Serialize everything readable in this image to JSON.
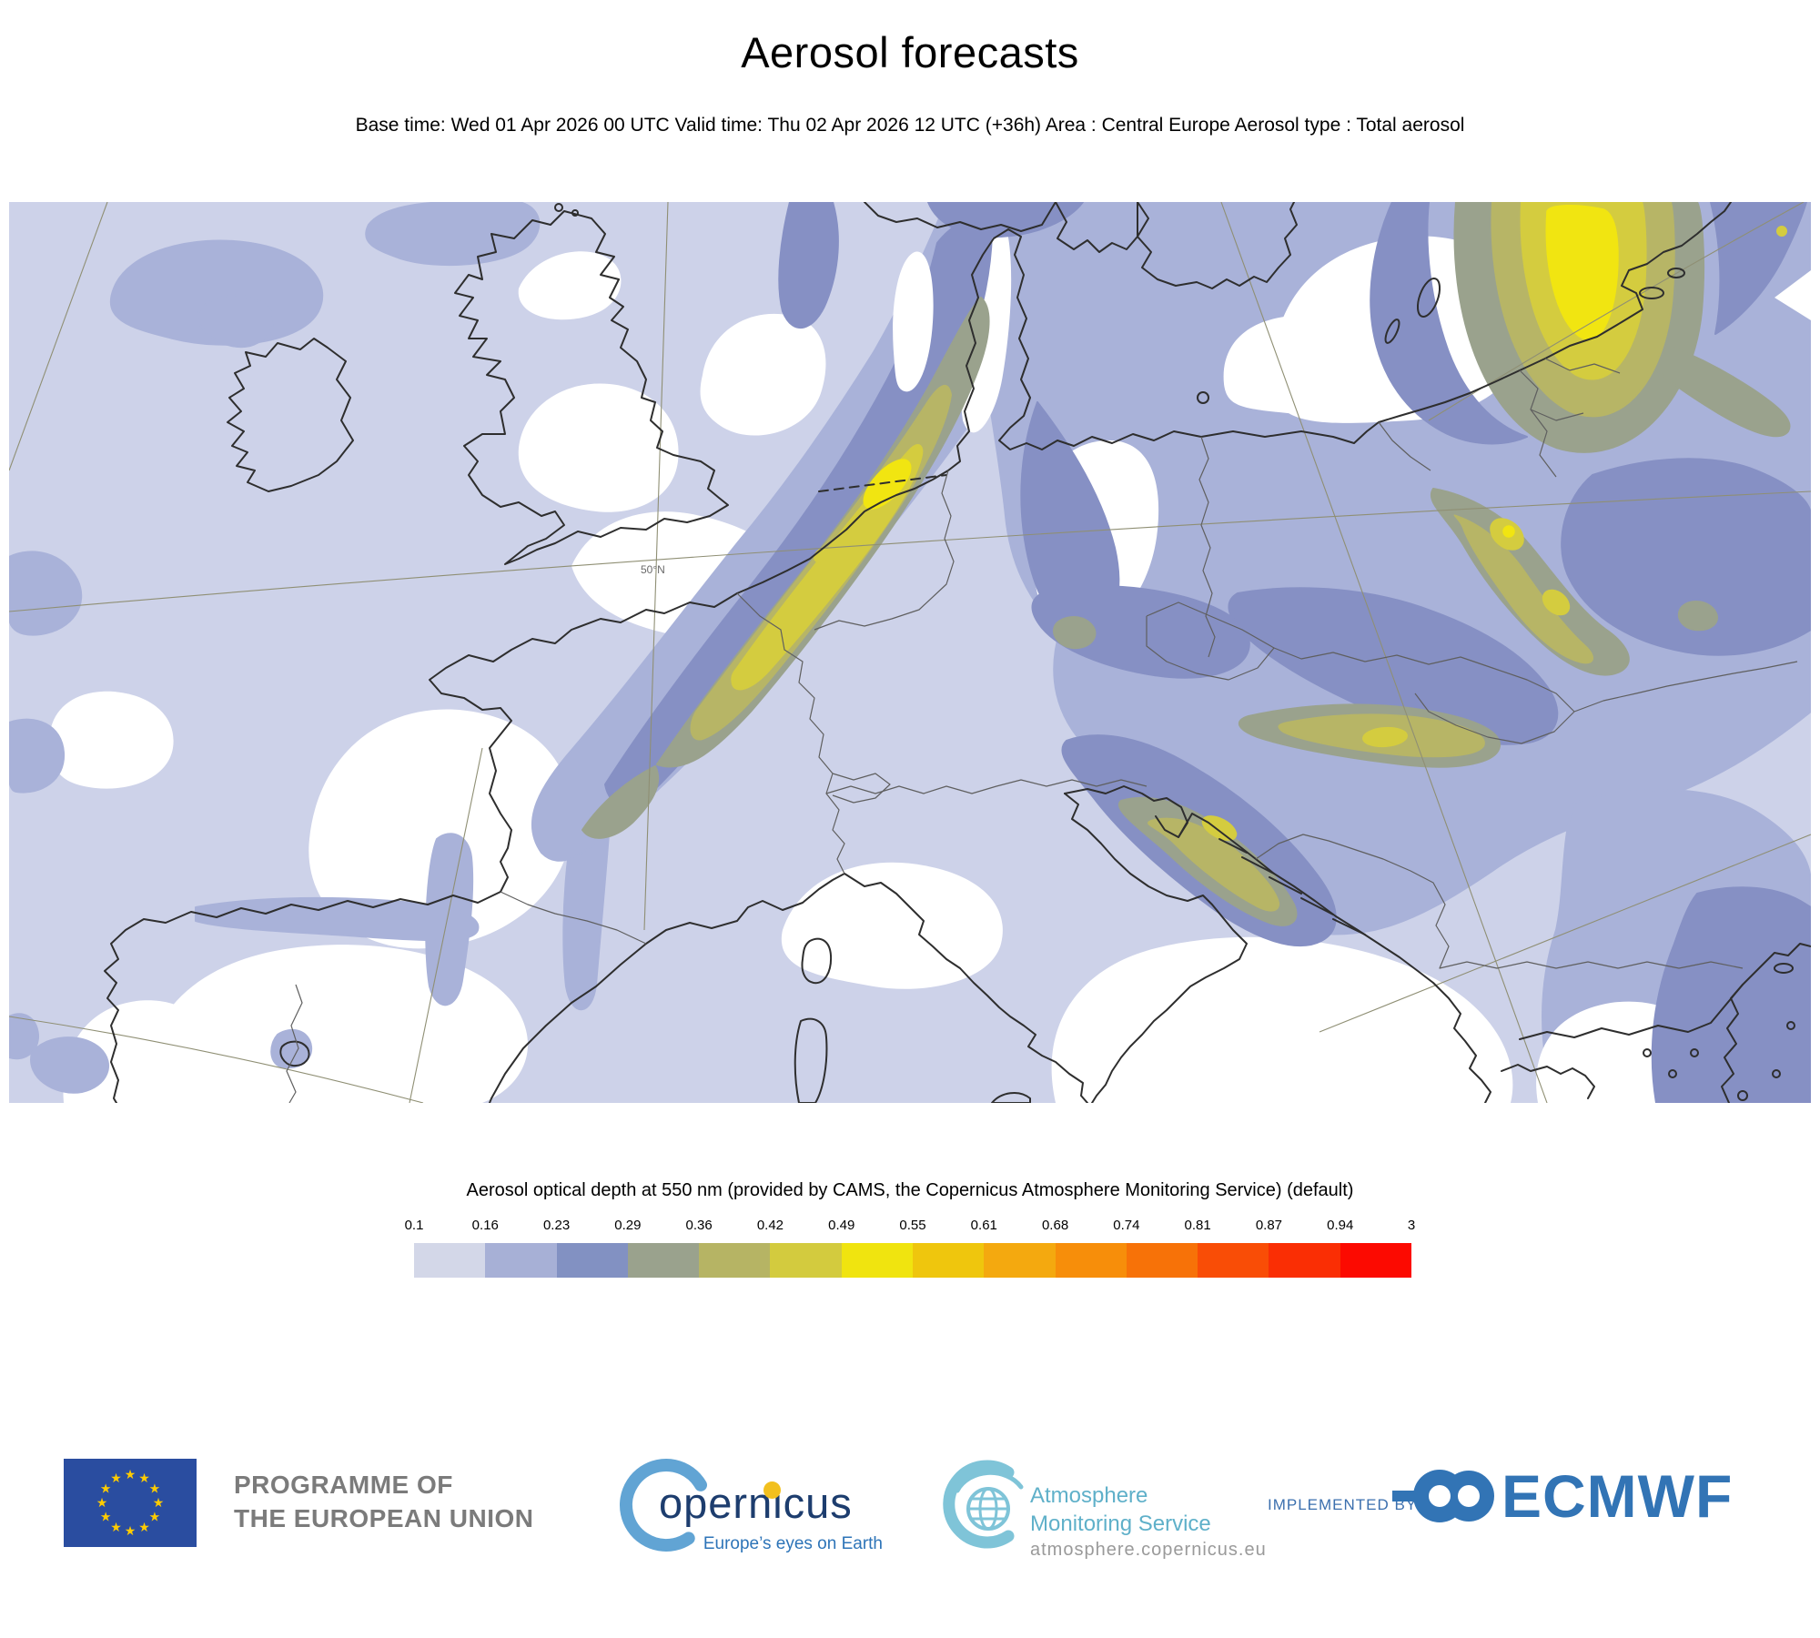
{
  "title": "Aerosol forecasts",
  "subtitle": "Base time: Wed 01 Apr 2026 00 UTC Valid time: Thu 02 Apr 2026 12 UTC (+36h) Area : Central Europe Aerosol type : Total aerosol",
  "map": {
    "parallel_label": "50°N"
  },
  "legend": {
    "title": "Aerosol optical depth at 550 nm (provided by CAMS, the Copernicus Atmosphere Monitoring Service) (default)",
    "ticks": [
      "0.1",
      "0.16",
      "0.23",
      "0.29",
      "0.36",
      "0.42",
      "0.49",
      "0.55",
      "0.61",
      "0.68",
      "0.74",
      "0.81",
      "0.87",
      "0.94",
      "3"
    ],
    "colors": [
      "#d3d7e8",
      "#a7b0d6",
      "#8291c2",
      "#9aa28d",
      "#b6b464",
      "#d3cb3e",
      "#f0e40f",
      "#efc60d",
      "#f4a90f",
      "#f78e0a",
      "#f77208",
      "#f94d06",
      "#fa2e04",
      "#fc0a01"
    ]
  },
  "footer": {
    "eu": {
      "line1": "PROGRAMME OF",
      "line2": "THE EUROPEAN UNION",
      "flag_blue": "#2a4da0",
      "star_yellow": "#ffcc00",
      "star_count": 12
    },
    "copernicus": {
      "wordmark": "opernicus",
      "tagline": "Europe’s eyes on Earth"
    },
    "ams": {
      "line1": "Atmosphere",
      "line2": "Monitoring Service",
      "url": "atmosphere.copernicus.eu"
    },
    "implemented_by": "IMPLEMENTED BY",
    "ecmwf": {
      "wordmark": "ECMWF",
      "blue": "#3274b5"
    }
  }
}
